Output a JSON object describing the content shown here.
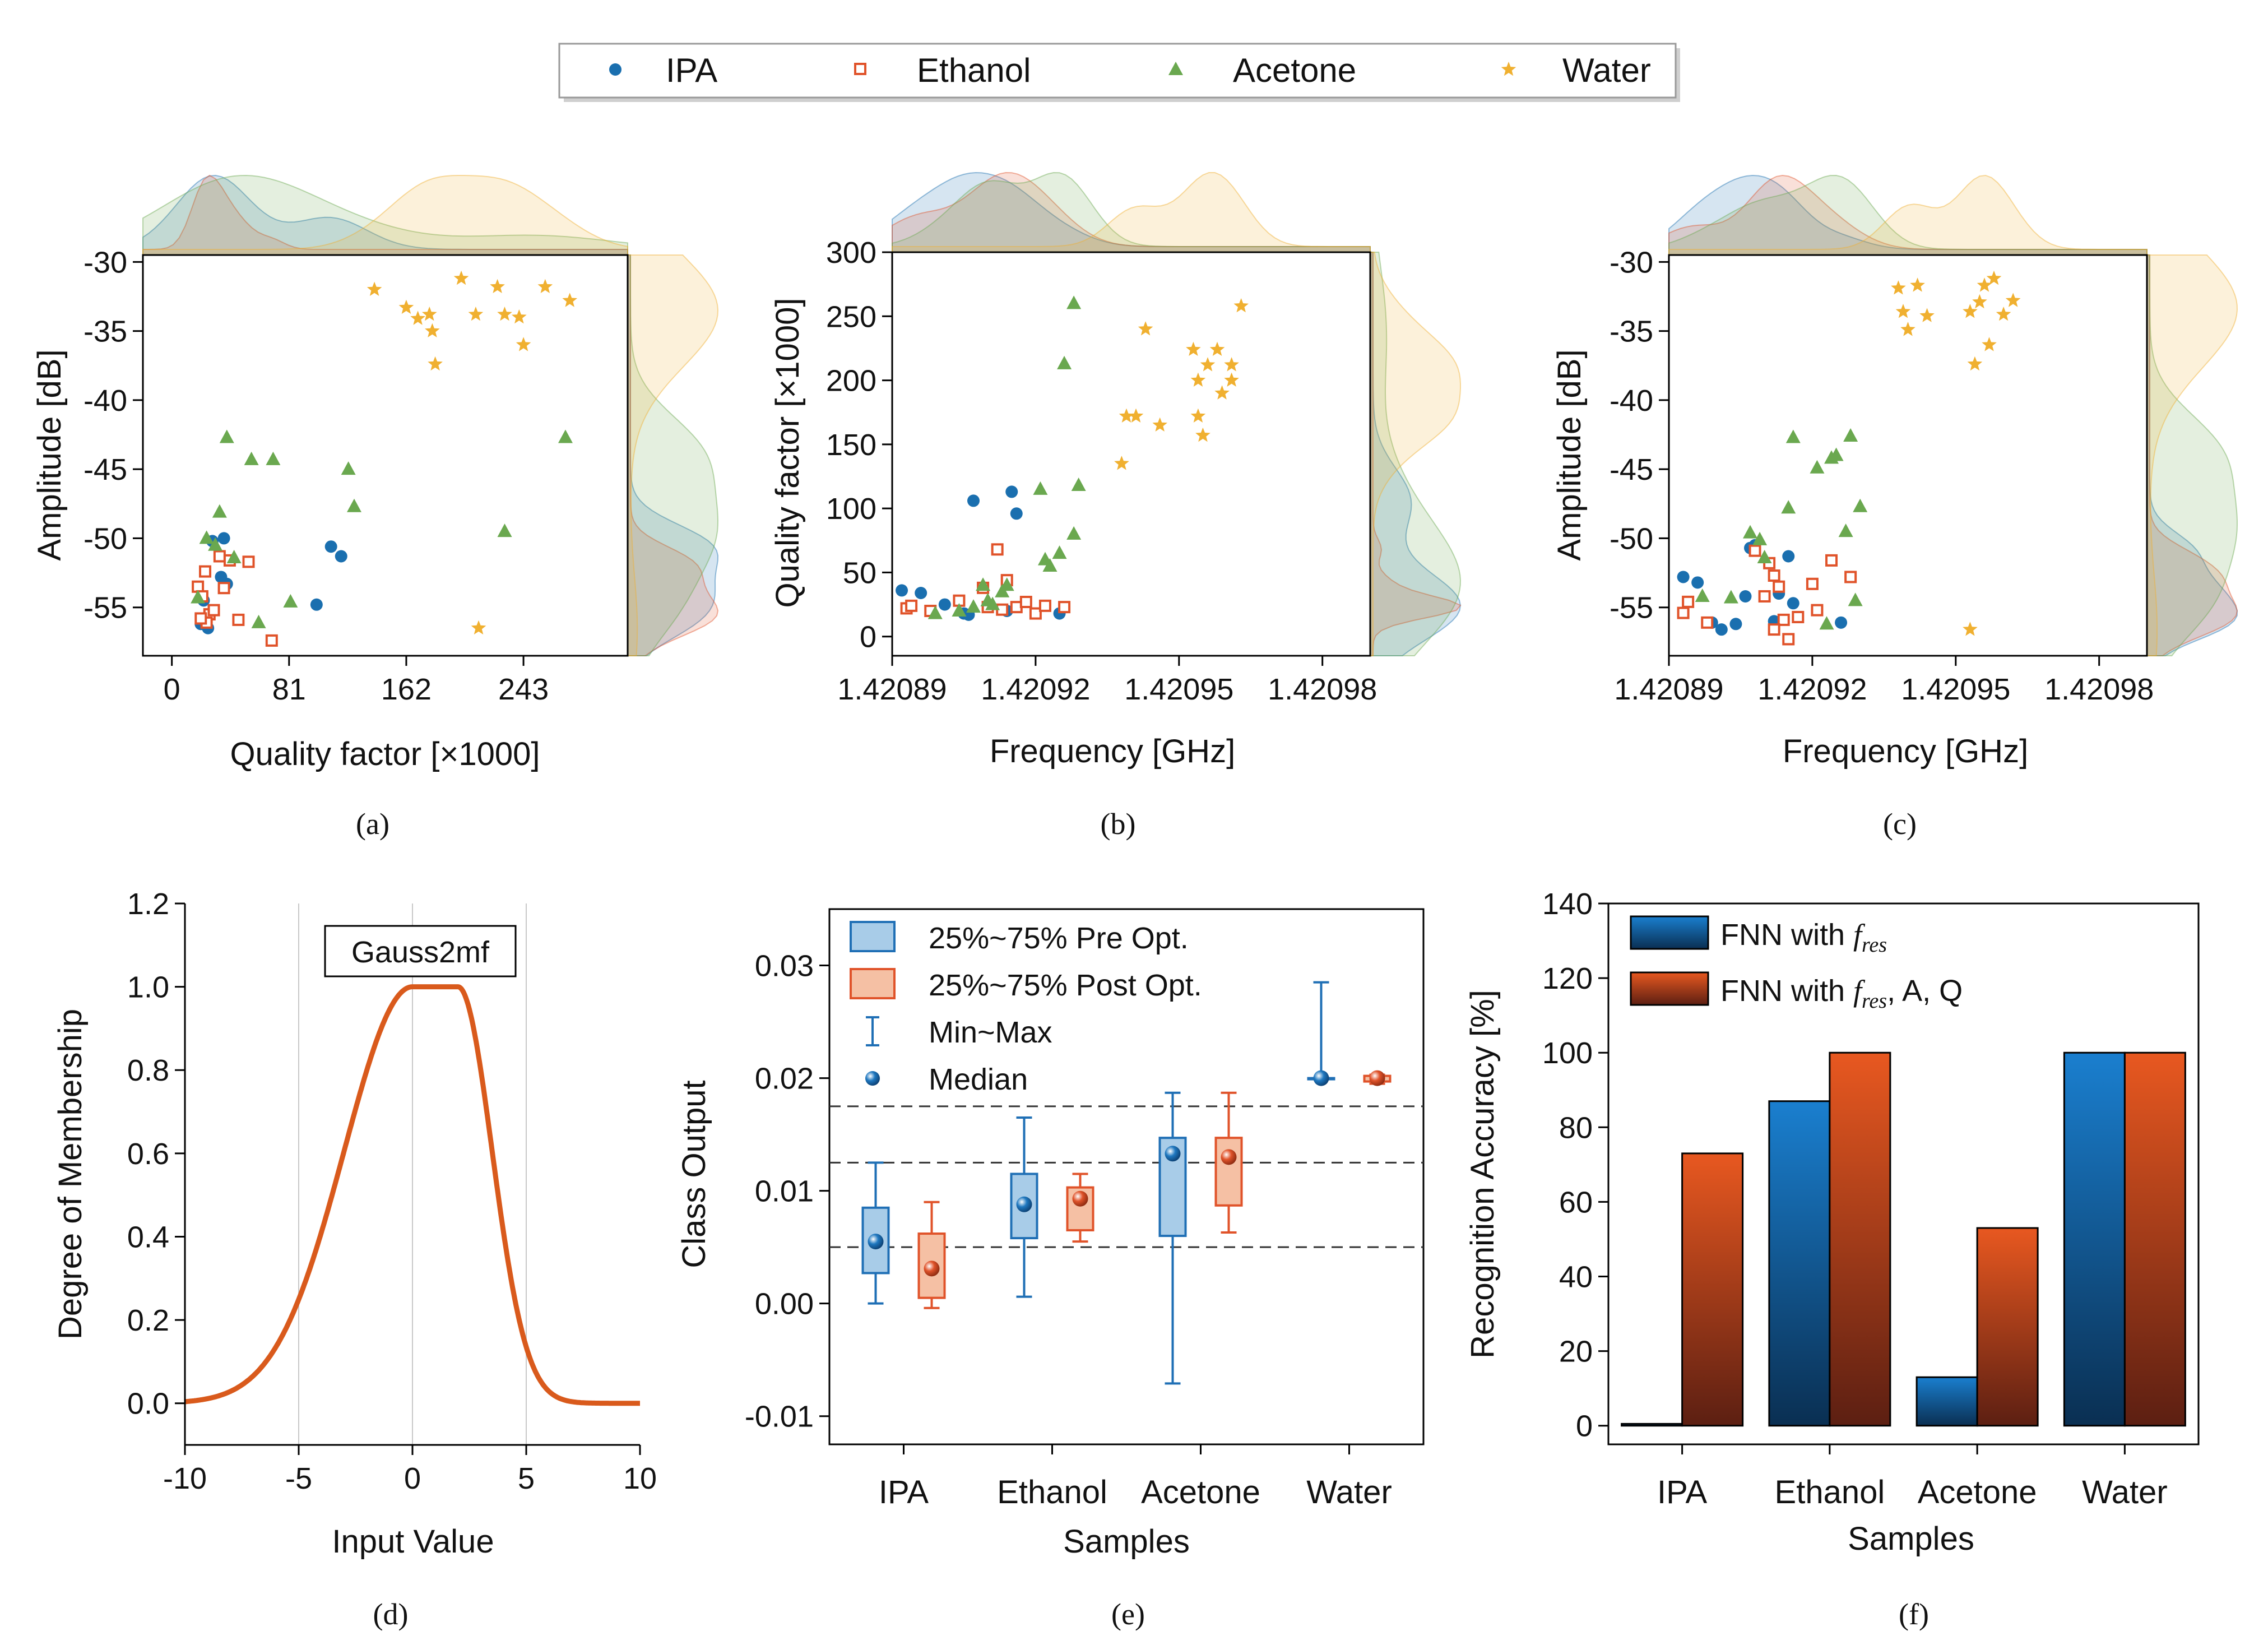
{
  "colors": {
    "ipa": "#1a6faf",
    "ethanol": "#e0532a",
    "acetone": "#6aa84f",
    "water": "#f0b030",
    "curve": "#d95a1c",
    "box_pre_fill": "#a8cce8",
    "box_pre_stroke": "#1f6fb5",
    "box_post_fill": "#f5c0a4",
    "box_post_stroke": "#e0532a",
    "bar_blue_top": "#1a7fcf",
    "bar_blue_bottom": "#0a2f52",
    "bar_orange_top": "#e85820",
    "bar_orange_bottom": "#5c1f12"
  },
  "legend_top": {
    "items": [
      {
        "label": "IPA",
        "icon": "circle-icon"
      },
      {
        "label": "Ethanol",
        "icon": "square-icon"
      },
      {
        "label": "Acetone",
        "icon": "triangle-icon"
      },
      {
        "label": "Water",
        "icon": "star-icon"
      }
    ]
  },
  "panels": {
    "a": {
      "label": "(a)",
      "xlabel": "Quality factor [×1000]",
      "ylabel": "Amplitude [dB]"
    },
    "b": {
      "label": "(b)",
      "xlabel": "Frequency [GHz]",
      "ylabel": "Quality factor [×1000]"
    },
    "c": {
      "label": "(c)",
      "xlabel": "Frequency [GHz]",
      "ylabel": "Amplitude [dB]"
    },
    "d": {
      "label": "(d)",
      "xlabel": "Input Value",
      "ylabel": "Degree of Membership",
      "annotation": "Gauss2mf"
    },
    "e": {
      "label": "(e)",
      "xlabel": "Samples",
      "ylabel": "Class Output",
      "legend": [
        "25%~75% Pre Opt.",
        "25%~75% Post Opt.",
        "Min~Max",
        "Median"
      ]
    },
    "f": {
      "label": "(f)",
      "xlabel": "Samples",
      "ylabel": "Recognition Accuracy [%]",
      "legend": [
        {
          "prefix": "FNN with ",
          "italic": "f",
          "sub": "res",
          "suffix": ""
        },
        {
          "prefix": "FNN with ",
          "italic": "f",
          "sub": "res",
          "suffix": ", A, Q"
        }
      ]
    }
  },
  "chart_data": [
    {
      "id": "a",
      "type": "scatter",
      "title": "",
      "xlabel": "Quality factor [×1000]",
      "ylabel": "Amplitude [dB]",
      "xlim": [
        -20,
        315
      ],
      "ylim": [
        -58.5,
        -29.5
      ],
      "xticks": [
        0,
        81,
        162,
        243
      ],
      "yticks": [
        -30,
        -35,
        -40,
        -45,
        -50,
        -55
      ],
      "series": [
        {
          "name": "IPA",
          "marker": "circle",
          "points": [
            [
              20,
              -56.2
            ],
            [
              25,
              -56.5
            ],
            [
              28,
              -50.2
            ],
            [
              36,
              -50
            ],
            [
              34,
              -52.8
            ],
            [
              38,
              -53.3
            ],
            [
              100,
              -54.8
            ],
            [
              110,
              -50.6
            ],
            [
              117,
              -51.3
            ],
            [
              22,
              -54.5
            ]
          ]
        },
        {
          "name": "Ethanol",
          "marker": "square",
          "points": [
            [
              18,
              -53.5
            ],
            [
              21,
              -54.2
            ],
            [
              23,
              -52.4
            ],
            [
              26,
              -55.5
            ],
            [
              29,
              -55.2
            ],
            [
              33,
              -51.3
            ],
            [
              36,
              -53.6
            ],
            [
              40,
              -51.6
            ],
            [
              46,
              -55.9
            ],
            [
              53,
              -51.7
            ],
            [
              69,
              -57.4
            ],
            [
              24,
              -56.1
            ],
            [
              20,
              -55.8
            ]
          ]
        },
        {
          "name": "Acetone",
          "marker": "triangle",
          "points": [
            [
              18,
              -54.3
            ],
            [
              24,
              -50
            ],
            [
              30,
              -50.5
            ],
            [
              33,
              -48.1
            ],
            [
              38,
              -42.7
            ],
            [
              43,
              -51.4
            ],
            [
              55,
              -44.3
            ],
            [
              60,
              -56.1
            ],
            [
              70,
              -44.3
            ],
            [
              82,
              -54.6
            ],
            [
              122,
              -45
            ],
            [
              126,
              -47.7
            ],
            [
              230,
              -49.5
            ],
            [
              272,
              -42.7
            ]
          ]
        },
        {
          "name": "Water",
          "marker": "star",
          "points": [
            [
              140,
              -32
            ],
            [
              162,
              -33.3
            ],
            [
              170,
              -34.1
            ],
            [
              178,
              -33.8
            ],
            [
              180,
              -35
            ],
            [
              182,
              -37.4
            ],
            [
              200,
              -31.2
            ],
            [
              210,
              -33.8
            ],
            [
              225,
              -31.8
            ],
            [
              230,
              -33.8
            ],
            [
              240,
              -34
            ],
            [
              243,
              -36
            ],
            [
              258,
              -31.8
            ],
            [
              275,
              -32.8
            ],
            [
              212,
              -56.5
            ]
          ]
        }
      ]
    },
    {
      "id": "b",
      "type": "scatter",
      "title": "",
      "xlabel": "Frequency [GHz]",
      "ylabel": "Quality factor [×1000]",
      "xlim": [
        1.42089,
        1.42099
      ],
      "ylim": [
        -15,
        300
      ],
      "xticks": [
        1.42089,
        1.42092,
        1.42095,
        1.42098
      ],
      "yticks": [
        0,
        50,
        100,
        150,
        200,
        250,
        300
      ],
      "series": [
        {
          "name": "IPA",
          "marker": "circle",
          "points": [
            [
              1.420892,
              36
            ],
            [
              1.420896,
              34
            ],
            [
              1.420901,
              25
            ],
            [
              1.420905,
              18
            ],
            [
              1.420906,
              17
            ],
            [
              1.420907,
              106
            ],
            [
              1.420914,
              20
            ],
            [
              1.420915,
              113
            ],
            [
              1.420916,
              96
            ],
            [
              1.420925,
              18
            ]
          ]
        },
        {
          "name": "Ethanol",
          "marker": "square",
          "points": [
            [
              1.420893,
              22
            ],
            [
              1.420894,
              24
            ],
            [
              1.420898,
              20
            ],
            [
              1.420904,
              28
            ],
            [
              1.420909,
              38
            ],
            [
              1.42091,
              23
            ],
            [
              1.420912,
              68
            ],
            [
              1.420913,
              21
            ],
            [
              1.420914,
              44
            ],
            [
              1.420916,
              23
            ],
            [
              1.420918,
              27
            ],
            [
              1.42092,
              18
            ],
            [
              1.420922,
              24
            ],
            [
              1.420926,
              23
            ]
          ]
        },
        {
          "name": "Acetone",
          "marker": "triangle",
          "points": [
            [
              1.420899,
              18
            ],
            [
              1.420904,
              20
            ],
            [
              1.420907,
              23
            ],
            [
              1.420909,
              40
            ],
            [
              1.42091,
              28
            ],
            [
              1.420911,
              25
            ],
            [
              1.420913,
              35
            ],
            [
              1.420914,
              40
            ],
            [
              1.420921,
              115
            ],
            [
              1.420922,
              60
            ],
            [
              1.420923,
              55
            ],
            [
              1.420925,
              65
            ],
            [
              1.420926,
              213
            ],
            [
              1.420928,
              80
            ],
            [
              1.420928,
              260
            ],
            [
              1.420929,
              118
            ]
          ]
        },
        {
          "name": "Water",
          "marker": "star",
          "points": [
            [
              1.420938,
              135
            ],
            [
              1.420939,
              172
            ],
            [
              1.420941,
              172
            ],
            [
              1.420943,
              240
            ],
            [
              1.420946,
              165
            ],
            [
              1.420953,
              224
            ],
            [
              1.420954,
              172
            ],
            [
              1.420954,
              200
            ],
            [
              1.420955,
              157
            ],
            [
              1.420956,
              212
            ],
            [
              1.420958,
              224
            ],
            [
              1.420959,
              190
            ],
            [
              1.420961,
              212
            ],
            [
              1.420961,
              200
            ],
            [
              1.420963,
              258
            ]
          ]
        }
      ]
    },
    {
      "id": "c",
      "type": "scatter",
      "title": "",
      "xlabel": "Frequency [GHz]",
      "ylabel": "Amplitude [dB]",
      "xlim": [
        1.42089,
        1.42099
      ],
      "ylim": [
        -58.5,
        -29.5
      ],
      "xticks": [
        1.42089,
        1.42092,
        1.42095,
        1.42098
      ],
      "yticks": [
        -30,
        -35,
        -40,
        -45,
        -50,
        -55
      ],
      "series": [
        {
          "name": "IPA",
          "marker": "circle",
          "points": [
            [
              1.420893,
              -52.8
            ],
            [
              1.420896,
              -53.2
            ],
            [
              1.420899,
              -56.1
            ],
            [
              1.420901,
              -56.6
            ],
            [
              1.420904,
              -56.2
            ],
            [
              1.420906,
              -54.2
            ],
            [
              1.420907,
              -50.7
            ],
            [
              1.420908,
              -50.5
            ],
            [
              1.420912,
              -56
            ],
            [
              1.420913,
              -54
            ],
            [
              1.420915,
              -51.3
            ],
            [
              1.420916,
              -54.7
            ],
            [
              1.420926,
              -56.1
            ]
          ]
        },
        {
          "name": "Ethanol",
          "marker": "square",
          "points": [
            [
              1.420893,
              -55.4
            ],
            [
              1.420894,
              -54.6
            ],
            [
              1.420898,
              -56.1
            ],
            [
              1.420908,
              -50.9
            ],
            [
              1.42091,
              -54.2
            ],
            [
              1.420911,
              -51.8
            ],
            [
              1.420912,
              -52.7
            ],
            [
              1.420913,
              -53.5
            ],
            [
              1.420914,
              -55.9
            ],
            [
              1.420915,
              -57.3
            ],
            [
              1.420917,
              -55.7
            ],
            [
              1.42092,
              -53.3
            ],
            [
              1.420921,
              -55.2
            ],
            [
              1.420924,
              -51.6
            ],
            [
              1.420928,
              -52.8
            ],
            [
              1.420912,
              -56.6
            ]
          ]
        },
        {
          "name": "Acetone",
          "marker": "triangle",
          "points": [
            [
              1.420897,
              -54.2
            ],
            [
              1.420903,
              -54.3
            ],
            [
              1.420907,
              -49.6
            ],
            [
              1.420909,
              -50.1
            ],
            [
              1.42091,
              -51.4
            ],
            [
              1.420915,
              -47.8
            ],
            [
              1.420916,
              -42.7
            ],
            [
              1.420921,
              -44.9
            ],
            [
              1.420923,
              -56.2
            ],
            [
              1.420924,
              -44.2
            ],
            [
              1.420925,
              -44
            ],
            [
              1.420927,
              -49.5
            ],
            [
              1.420928,
              -42.6
            ],
            [
              1.420929,
              -54.5
            ],
            [
              1.42093,
              -47.7
            ]
          ]
        },
        {
          "name": "Water",
          "marker": "star",
          "points": [
            [
              1.420938,
              -31.9
            ],
            [
              1.420939,
              -33.6
            ],
            [
              1.42094,
              -34.9
            ],
            [
              1.420942,
              -31.7
            ],
            [
              1.420944,
              -33.9
            ],
            [
              1.420953,
              -33.6
            ],
            [
              1.420954,
              -37.4
            ],
            [
              1.420955,
              -32.9
            ],
            [
              1.420956,
              -31.7
            ],
            [
              1.420957,
              -36
            ],
            [
              1.420958,
              -31.2
            ],
            [
              1.42096,
              -33.8
            ],
            [
              1.420962,
              -32.8
            ],
            [
              1.420953,
              -56.6
            ]
          ]
        }
      ]
    },
    {
      "id": "d",
      "type": "line",
      "title": "",
      "xlabel": "Input Value",
      "ylabel": "Degree of Membership",
      "xlim": [
        -10,
        10
      ],
      "ylim": [
        -0.1,
        1.2
      ],
      "xticks": [
        -10,
        -5,
        0,
        5,
        10
      ],
      "yticks": [
        0.0,
        0.2,
        0.4,
        0.6,
        0.8,
        1.0,
        1.2
      ],
      "series": [
        {
          "name": "Gauss2mf",
          "function": "gauss2mf",
          "params": {
            "sigma1": 3,
            "c1": 0,
            "sigma2": 1.5,
            "c2": 2
          }
        }
      ]
    },
    {
      "id": "e",
      "type": "box",
      "title": "",
      "xlabel": "Samples",
      "ylabel": "Class Output",
      "ylim": [
        -0.0125,
        0.035
      ],
      "yticks": [
        -0.01,
        0.0,
        0.01,
        0.02,
        0.03
      ],
      "categories": [
        "IPA",
        "Ethanol",
        "Acetone",
        "Water"
      ],
      "reference_lines": [
        0.005,
        0.0125,
        0.0175
      ],
      "series": [
        {
          "name": "Pre Opt.",
          "boxes": [
            {
              "min": 0.0,
              "q1": 0.0027,
              "median": 0.0055,
              "q3": 0.0085,
              "max": 0.0125
            },
            {
              "min": 0.0006,
              "q1": 0.0058,
              "median": 0.0088,
              "q3": 0.0115,
              "max": 0.0165
            },
            {
              "min": -0.0071,
              "q1": 0.006,
              "median": 0.0133,
              "q3": 0.0147,
              "max": 0.0187
            },
            {
              "min": 0.02,
              "q1": 0.02,
              "median": 0.02,
              "q3": 0.02,
              "max": 0.0285
            }
          ]
        },
        {
          "name": "Post Opt.",
          "boxes": [
            {
              "min": -0.0004,
              "q1": 0.0005,
              "median": 0.0031,
              "q3": 0.0062,
              "max": 0.009
            },
            {
              "min": 0.0055,
              "q1": 0.0065,
              "median": 0.0093,
              "q3": 0.0103,
              "max": 0.0115
            },
            {
              "min": 0.0063,
              "q1": 0.0087,
              "median": 0.013,
              "q3": 0.0147,
              "max": 0.0187
            },
            {
              "min": 0.0195,
              "q1": 0.0197,
              "median": 0.02,
              "q3": 0.0202,
              "max": 0.0203
            }
          ]
        }
      ]
    },
    {
      "id": "f",
      "type": "bar",
      "title": "",
      "xlabel": "Samples",
      "ylabel": "Recognition Accuracy [%]",
      "ylim": [
        -5,
        140
      ],
      "yticks": [
        0,
        20,
        40,
        60,
        80,
        100,
        120,
        140
      ],
      "categories": [
        "IPA",
        "Ethanol",
        "Acetone",
        "Water"
      ],
      "series": [
        {
          "name": "FNN with f_res",
          "values": [
            0.5,
            87,
            13,
            100
          ]
        },
        {
          "name": "FNN with f_res, A, Q",
          "values": [
            73,
            100,
            53,
            100
          ]
        }
      ]
    }
  ]
}
